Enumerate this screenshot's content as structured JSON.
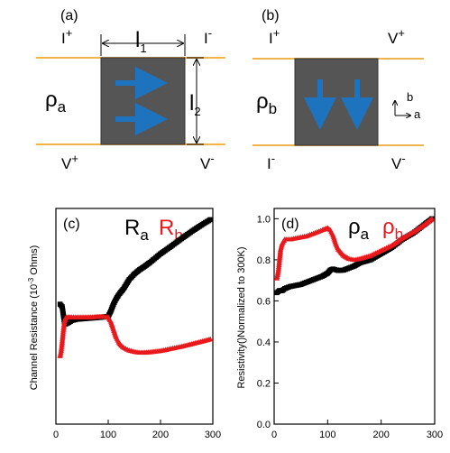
{
  "panel_a": {
    "label": "(a)",
    "top_left": "I",
    "top_left_sup": "+",
    "top_right": "I",
    "top_right_sup": "-",
    "bottom_left": "V",
    "bottom_left_sup": "+",
    "bottom_right": "V",
    "bottom_right_sup": "-",
    "rho": "ρ",
    "rho_sub": "a",
    "l1": "l",
    "l1_sub": "1",
    "l2": "l",
    "l2_sub": "2"
  },
  "panel_b": {
    "label": "(b)",
    "top_left": "I",
    "top_left_sup": "+",
    "top_right": "V",
    "top_right_sup": "+",
    "bottom_left": "I",
    "bottom_left_sup": "-",
    "bottom_right": "V",
    "bottom_right_sup": "-",
    "rho": "ρ",
    "rho_sub": "b",
    "axis_b": "b",
    "axis_a": "a"
  },
  "colors": {
    "sample": "#555555",
    "arrow": "#1e73be",
    "wire": "#f0b44c",
    "series_a": "#000000",
    "series_b": "#e8191c"
  },
  "chart_data": [
    {
      "type": "scatter",
      "panel": "(c)",
      "ylabel_pre": "Channel Resistance (10",
      "ylabel_sup": "-3",
      "ylabel_post": " Ohms)",
      "xlim": [
        0,
        300
      ],
      "ylim": [
        0,
        5
      ],
      "xticks": [
        "0",
        "100",
        "200",
        "300"
      ],
      "legend": [
        {
          "main": "R",
          "sub": "a"
        },
        {
          "main": "R",
          "sub": "b"
        }
      ],
      "series": [
        {
          "name": "Ra",
          "color": "#000000",
          "x": [
            8,
            10,
            12,
            14,
            16,
            18,
            20,
            25,
            30,
            40,
            50,
            60,
            70,
            80,
            90,
            100,
            105,
            110,
            115,
            120,
            130,
            140,
            150,
            160,
            170,
            180,
            200,
            220,
            240,
            260,
            280,
            295
          ],
          "y": [
            2.78,
            2.75,
            2.72,
            2.55,
            2.38,
            2.32,
            2.33,
            2.36,
            2.4,
            2.43,
            2.44,
            2.45,
            2.46,
            2.47,
            2.48,
            2.5,
            2.62,
            2.78,
            2.9,
            3.0,
            3.15,
            3.35,
            3.48,
            3.58,
            3.66,
            3.75,
            3.95,
            4.12,
            4.3,
            4.47,
            4.63,
            4.74
          ]
        },
        {
          "name": "Rb",
          "color": "#e8191c",
          "x": [
            8,
            10,
            12,
            14,
            16,
            18,
            20,
            25,
            30,
            40,
            50,
            60,
            70,
            80,
            90,
            100,
            105,
            110,
            115,
            120,
            125,
            130,
            140,
            150,
            160,
            170,
            180,
            200,
            220,
            240,
            260,
            280,
            295
          ],
          "y": [
            1.58,
            1.7,
            1.9,
            2.15,
            2.35,
            2.45,
            2.48,
            2.48,
            2.48,
            2.48,
            2.48,
            2.48,
            2.48,
            2.49,
            2.49,
            2.48,
            2.38,
            2.2,
            2.02,
            1.9,
            1.82,
            1.77,
            1.71,
            1.68,
            1.66,
            1.66,
            1.67,
            1.7,
            1.75,
            1.8,
            1.86,
            1.92,
            1.97
          ]
        }
      ]
    },
    {
      "type": "scatter",
      "panel": "(d)",
      "ylabel": "Resistivity()Normalized to 300K)",
      "xlim": [
        0,
        300
      ],
      "ylim": [
        0,
        1.05
      ],
      "xticks": [
        "0",
        "100",
        "200",
        "300"
      ],
      "yticks": [
        "0.0",
        "0.2",
        "0.4",
        "0.6",
        "0.8",
        "1.0"
      ],
      "legend": [
        {
          "main": "ρ",
          "sub": "a"
        },
        {
          "main": "ρ",
          "sub": "b"
        }
      ],
      "series": [
        {
          "name": "ρa",
          "color": "#000000",
          "x": [
            5,
            10,
            15,
            20,
            30,
            40,
            50,
            60,
            70,
            80,
            90,
            100,
            105,
            110,
            120,
            130,
            140,
            150,
            160,
            180,
            200,
            220,
            240,
            260,
            280,
            295
          ],
          "y": [
            0.64,
            0.65,
            0.65,
            0.66,
            0.67,
            0.675,
            0.68,
            0.69,
            0.7,
            0.71,
            0.72,
            0.735,
            0.75,
            0.755,
            0.748,
            0.75,
            0.76,
            0.77,
            0.785,
            0.8,
            0.83,
            0.86,
            0.9,
            0.93,
            0.97,
            1.0
          ]
        },
        {
          "name": "ρb",
          "color": "#e8191c",
          "x": [
            5,
            8,
            10,
            12,
            15,
            20,
            30,
            40,
            50,
            60,
            70,
            80,
            90,
            95,
            100,
            105,
            110,
            115,
            120,
            130,
            140,
            150,
            160,
            180,
            200,
            220,
            240,
            260,
            280,
            295
          ],
          "y": [
            0.71,
            0.75,
            0.8,
            0.85,
            0.88,
            0.9,
            0.9,
            0.905,
            0.91,
            0.915,
            0.925,
            0.935,
            0.945,
            0.95,
            0.955,
            0.945,
            0.92,
            0.88,
            0.85,
            0.82,
            0.805,
            0.8,
            0.805,
            0.82,
            0.845,
            0.87,
            0.905,
            0.935,
            0.97,
            1.0
          ]
        }
      ]
    }
  ]
}
